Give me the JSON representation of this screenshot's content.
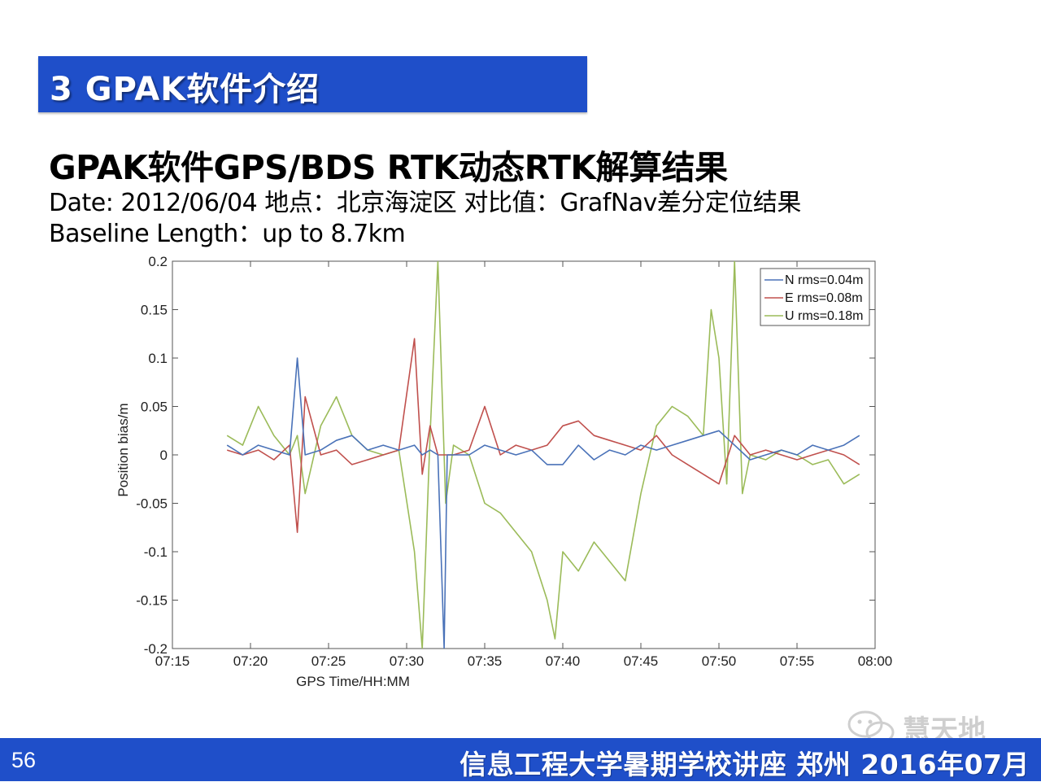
{
  "section": {
    "title": "3 GPAK软件介绍"
  },
  "slide": {
    "heading": "GPAK软件GPS/BDS RTK动态RTK解算结果",
    "line1": "Date: 2012/06/04   地点：北京海淀区 对比值：GrafNav差分定位结果",
    "line2": "Baseline Length：up to 8.7km"
  },
  "footer": {
    "page_number": "56",
    "text": "信息工程大学暑期学校讲座  郑州  2016年07月"
  },
  "watermark": {
    "text": "慧天地",
    "icon": "wechat-icon"
  },
  "colors": {
    "banner": "#1f4fc9",
    "N": "#4a72b8",
    "E": "#c0504d",
    "U": "#9bbb59"
  },
  "chart_data": {
    "type": "line",
    "title": "",
    "xlabel": "GPS Time/HH:MM",
    "ylabel": "Position bias/m",
    "xlim": [
      "07:15",
      "08:00"
    ],
    "ylim": [
      -0.2,
      0.2
    ],
    "x_ticks": [
      "07:15",
      "07:20",
      "07:25",
      "07:30",
      "07:35",
      "07:40",
      "07:45",
      "07:50",
      "07:55",
      "08:00"
    ],
    "y_ticks": [
      "0.2",
      "0.15",
      "0.1",
      "0.05",
      "0",
      "-0.05",
      "-0.1",
      "-0.15",
      "-0.2"
    ],
    "legend_position": "top-right",
    "grid": false,
    "series": [
      {
        "name": "N rms=0.04m",
        "color": "#4a72b8",
        "x": [
          "07:18.5",
          "07:19.5",
          "07:20.5",
          "07:21.5",
          "07:22.5",
          "07:23.0",
          "07:23.5",
          "07:24.5",
          "07:25.5",
          "07:26.5",
          "07:27.5",
          "07:28.5",
          "07:29.5",
          "07:30.5",
          "07:31.0",
          "07:31.5",
          "07:32.0",
          "07:32.4",
          "07:32.6",
          "07:33.0",
          "07:34.0",
          "07:35.0",
          "07:36.0",
          "07:37.0",
          "07:38.0",
          "07:39.0",
          "07:40.0",
          "07:41.0",
          "07:42.0",
          "07:43.0",
          "07:44.0",
          "07:45.0",
          "07:46.0",
          "07:47.0",
          "07:48.0",
          "07:49.0",
          "07:50.0",
          "07:51.0",
          "07:52.0",
          "07:53.0",
          "07:54.0",
          "07:55.0",
          "07:56.0",
          "07:57.0",
          "07:58.0",
          "07:59.0"
        ],
        "y": [
          0.01,
          0.0,
          0.01,
          0.005,
          0.0,
          0.1,
          0.0,
          0.005,
          0.015,
          0.02,
          0.005,
          0.01,
          0.005,
          0.01,
          0.0,
          0.005,
          0.0,
          -0.2,
          0.0,
          0.0,
          0.0,
          0.01,
          0.005,
          0.0,
          0.005,
          -0.01,
          -0.01,
          0.01,
          -0.005,
          0.005,
          0.0,
          0.01,
          0.005,
          0.01,
          0.015,
          0.02,
          0.025,
          0.01,
          -0.005,
          0.0,
          0.005,
          0.0,
          0.01,
          0.005,
          0.01,
          0.02
        ]
      },
      {
        "name": "E rms=0.08m",
        "color": "#c0504d",
        "x": [
          "07:18.5",
          "07:19.5",
          "07:20.5",
          "07:21.5",
          "07:22.5",
          "07:23.0",
          "07:23.5",
          "07:24.5",
          "07:25.5",
          "07:26.5",
          "07:27.5",
          "07:28.5",
          "07:29.5",
          "07:30.5",
          "07:31.0",
          "07:31.5",
          "07:32.0",
          "07:33.0",
          "07:34.0",
          "07:35.0",
          "07:36.0",
          "07:37.0",
          "07:38.0",
          "07:39.0",
          "07:40.0",
          "07:41.0",
          "07:42.0",
          "07:43.0",
          "07:44.0",
          "07:45.0",
          "07:46.0",
          "07:47.0",
          "07:48.0",
          "07:49.0",
          "07:50.0",
          "07:51.0",
          "07:52.0",
          "07:53.0",
          "07:54.0",
          "07:55.0",
          "07:56.0",
          "07:57.0",
          "07:58.0",
          "07:59.0"
        ],
        "y": [
          0.005,
          0.0,
          0.005,
          -0.005,
          0.01,
          -0.08,
          0.06,
          0.0,
          0.005,
          -0.01,
          -0.005,
          0.0,
          0.005,
          0.12,
          -0.02,
          0.03,
          0.0,
          0.0,
          0.005,
          0.05,
          0.0,
          0.01,
          0.005,
          0.01,
          0.03,
          0.035,
          0.02,
          0.015,
          0.01,
          0.005,
          0.02,
          0.0,
          -0.01,
          -0.02,
          -0.03,
          0.02,
          0.0,
          0.005,
          0.0,
          -0.005,
          0.0,
          0.005,
          0.0,
          -0.01
        ]
      },
      {
        "name": "U rms=0.18m",
        "color": "#9bbb59",
        "x": [
          "07:18.5",
          "07:19.5",
          "07:20.5",
          "07:21.5",
          "07:22.5",
          "07:23.0",
          "07:23.5",
          "07:24.5",
          "07:25.5",
          "07:26.5",
          "07:27.5",
          "07:28.5",
          "07:29.5",
          "07:30.5",
          "07:31.0",
          "07:31.5",
          "07:32.0",
          "07:32.5",
          "07:33.0",
          "07:34.0",
          "07:35.0",
          "07:36.0",
          "07:37.0",
          "07:38.0",
          "07:39.0",
          "07:39.5",
          "07:40.0",
          "07:41.0",
          "07:42.0",
          "07:43.0",
          "07:44.0",
          "07:45.0",
          "07:46.0",
          "07:47.0",
          "07:48.0",
          "07:49.0",
          "07:49.5",
          "07:50.0",
          "07:50.5",
          "07:51.0",
          "07:51.5",
          "07:52.0",
          "07:53.0",
          "07:54.0",
          "07:55.0",
          "07:56.0",
          "07:57.0",
          "07:58.0",
          "07:59.0"
        ],
        "y": [
          0.02,
          0.01,
          0.05,
          0.02,
          0.0,
          0.02,
          -0.04,
          0.03,
          0.06,
          0.02,
          0.005,
          0.0,
          0.005,
          -0.1,
          -0.2,
          0.02,
          0.2,
          -0.05,
          0.01,
          0.0,
          -0.05,
          -0.06,
          -0.08,
          -0.1,
          -0.15,
          -0.19,
          -0.1,
          -0.12,
          -0.09,
          -0.11,
          -0.13,
          -0.04,
          0.03,
          0.05,
          0.04,
          0.02,
          0.15,
          0.1,
          -0.03,
          0.2,
          -0.04,
          0.0,
          -0.005,
          0.005,
          0.0,
          -0.01,
          -0.005,
          -0.03,
          -0.02
        ]
      }
    ]
  }
}
